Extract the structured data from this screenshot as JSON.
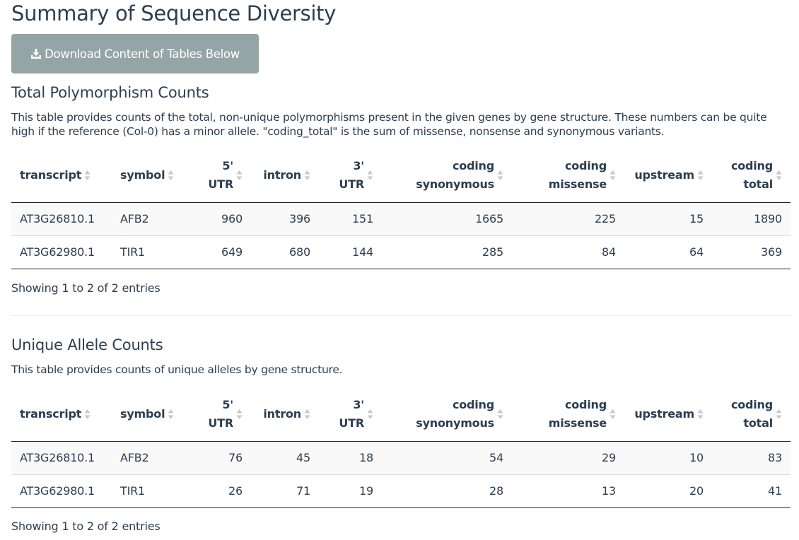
{
  "page_title": "Summary of Sequence Diversity",
  "download_button": {
    "label": "Download Content of Tables Below",
    "icon": "download-icon"
  },
  "columns": [
    {
      "key": "transcript",
      "line1": "transcript",
      "line2": "",
      "align": "left"
    },
    {
      "key": "symbol",
      "line1": "symbol",
      "line2": "",
      "align": "left"
    },
    {
      "key": "utr5",
      "line1": "5'",
      "line2": "UTR",
      "align": "right"
    },
    {
      "key": "intron",
      "line1": "intron",
      "line2": "",
      "align": "right"
    },
    {
      "key": "utr3",
      "line1": "3'",
      "line2": "UTR",
      "align": "right"
    },
    {
      "key": "coding_synonymous",
      "line1": "coding",
      "line2": "synonymous",
      "align": "right"
    },
    {
      "key": "coding_missense",
      "line1": "coding",
      "line2": "missense",
      "align": "right"
    },
    {
      "key": "upstream",
      "line1": "upstream",
      "line2": "",
      "align": "right"
    },
    {
      "key": "coding_total",
      "line1": "coding",
      "line2": "total",
      "align": "right"
    }
  ],
  "tables": [
    {
      "title": "Total Polymorphism Counts",
      "description": "This table provides counts of the total, non-unique polymorphisms present in the given genes by gene structure. These numbers can be quite high if the reference (Col-0) has a minor allele. \"coding_total\" is the sum of missense, nonsense and synonymous variants.",
      "rows": [
        [
          "AT3G26810.1",
          "AFB2",
          "960",
          "396",
          "151",
          "1665",
          "225",
          "15",
          "1890"
        ],
        [
          "AT3G62980.1",
          "TIR1",
          "649",
          "680",
          "144",
          "285",
          "84",
          "64",
          "369"
        ]
      ],
      "info": "Showing 1 to 2 of 2 entries"
    },
    {
      "title": "Unique Allele Counts",
      "description": "This table provides counts of unique alleles by gene structure.",
      "rows": [
        [
          "AT3G26810.1",
          "AFB2",
          "76",
          "45",
          "18",
          "54",
          "29",
          "10",
          "83"
        ],
        [
          "AT3G62980.1",
          "TIR1",
          "26",
          "71",
          "19",
          "28",
          "13",
          "20",
          "41"
        ]
      ],
      "info": "Showing 1 to 2 of 2 entries"
    }
  ]
}
